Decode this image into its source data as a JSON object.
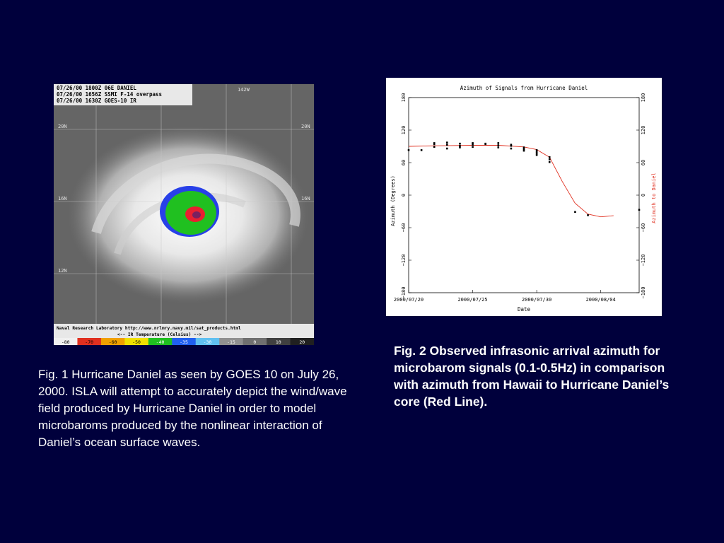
{
  "fig1": {
    "header_lines": [
      "07/26/00 1800Z  06E DANIEL",
      "07/26/00 1656Z  SSMI F-14 overpass",
      "07/26/00 1630Z  GOES-10 IR"
    ],
    "lat_labels": [
      "20N",
      "16N",
      "12N"
    ],
    "lon_label": "142W",
    "footer_line1": "Naval Research Laboratory  http://www.nrlmry.navy.mil/sat_products.html",
    "footer_line2": "<--   IR Temperature (Celsius)   -->",
    "colorbar_labels": [
      "-80",
      "-70",
      "-60",
      "-50",
      "-40",
      "-35",
      "-30",
      "-15",
      "0",
      "10",
      "20"
    ],
    "colorbar_colors": [
      "#f0f0f0",
      "#e03020",
      "#f0a000",
      "#f0e000",
      "#20c020",
      "#2060f0",
      "#60c0f0",
      "#909090",
      "#707070",
      "#404040",
      "#202020"
    ]
  },
  "fig2": {
    "title": "Azimuth of Signals from Hurricane Daniel",
    "left_ylabel": "Azimuth (Degrees)",
    "right_ylabel": "Azimuth to Daniel",
    "xlabel": "Date",
    "right_ylabel_color": "#e03020"
  },
  "chart_data": {
    "type": "scatter",
    "title": "Azimuth of Signals from Hurricane Daniel",
    "xlabel": "Date",
    "ylabel": "Azimuth (Degrees)",
    "y2label": "Azimuth to Daniel",
    "x_ticks": [
      "2000/07/20",
      "2000/07/25",
      "2000/07/30",
      "2000/08/04"
    ],
    "y_ticks": [
      180,
      120,
      60,
      0,
      -60,
      -120,
      -180
    ],
    "xlim": [
      "2000/07/20",
      "2000/08/07"
    ],
    "ylim": [
      -180,
      180
    ],
    "series": [
      {
        "name": "Observed arrival azimuth",
        "color": "#000000",
        "points": [
          [
            "2000/07/20",
            83
          ],
          [
            "2000/07/21",
            83
          ],
          [
            "2000/07/22",
            96
          ],
          [
            "2000/07/22",
            89
          ],
          [
            "2000/07/22",
            94
          ],
          [
            "2000/07/23",
            93
          ],
          [
            "2000/07/23",
            86
          ],
          [
            "2000/07/23",
            97
          ],
          [
            "2000/07/24",
            91
          ],
          [
            "2000/07/24",
            88
          ],
          [
            "2000/07/24",
            95
          ],
          [
            "2000/07/25",
            93
          ],
          [
            "2000/07/25",
            96
          ],
          [
            "2000/07/25",
            89
          ],
          [
            "2000/07/26",
            94
          ],
          [
            "2000/07/26",
            95
          ],
          [
            "2000/07/27",
            92
          ],
          [
            "2000/07/27",
            96
          ],
          [
            "2000/07/27",
            88
          ],
          [
            "2000/07/28",
            91
          ],
          [
            "2000/07/28",
            93
          ],
          [
            "2000/07/28",
            86
          ],
          [
            "2000/07/29",
            85
          ],
          [
            "2000/07/29",
            82
          ],
          [
            "2000/07/29",
            88
          ],
          [
            "2000/07/30",
            80
          ],
          [
            "2000/07/30",
            77
          ],
          [
            "2000/07/30",
            74
          ],
          [
            "2000/07/30",
            83
          ],
          [
            "2000/07/31",
            70
          ],
          [
            "2000/07/31",
            66
          ],
          [
            "2000/07/31",
            61
          ],
          [
            "2000/08/02",
            -31
          ],
          [
            "2000/08/03",
            -37
          ],
          [
            "2000/08/07",
            -27
          ]
        ]
      },
      {
        "name": "Azimuth to Daniel",
        "color": "#e03020",
        "points": [
          [
            "2000/07/20",
            90
          ],
          [
            "2000/07/22",
            91
          ],
          [
            "2000/07/25",
            92
          ],
          [
            "2000/07/27",
            92
          ],
          [
            "2000/07/29",
            89
          ],
          [
            "2000/07/30",
            84
          ],
          [
            "2000/07/31",
            70
          ],
          [
            "2000/08/01",
            25
          ],
          [
            "2000/08/02",
            -15
          ],
          [
            "2000/08/03",
            -35
          ],
          [
            "2000/08/04",
            -40
          ],
          [
            "2000/08/05",
            -38
          ]
        ]
      }
    ]
  },
  "captions": {
    "fig1": "Fig. 1  Hurricane Daniel as seen by GOES 10 on July 26, 2000.  ISLA will attempt to accurately depict the wind/wave field produced by Hurricane Daniel in order to model microbaroms produced by the nonlinear interaction of  Daniel’s ocean surface waves.",
    "fig2": "Fig. 2 Observed infrasonic arrival azimuth for microbarom signals (0.1-0.5Hz) in comparison with azimuth from Hawaii to Hurricane Daniel’s core (Red Line)."
  }
}
